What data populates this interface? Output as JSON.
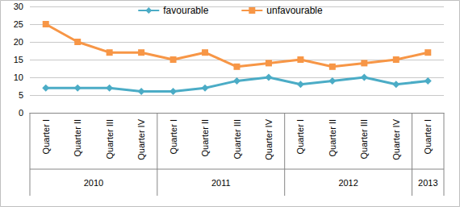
{
  "chart_data": {
    "type": "line",
    "categories": [
      "Quarter I",
      "Quarter II",
      "Quarter III",
      "Quarter IV",
      "Quarter I",
      "Quarter II",
      "Quarter III",
      "Quarter IV",
      "Quarter I",
      "Quarter II",
      "Quarter III",
      "Quarter IV",
      "Quarter I"
    ],
    "category_groups": [
      "2010",
      "2010",
      "2010",
      "2010",
      "2011",
      "2011",
      "2011",
      "2011",
      "2012",
      "2012",
      "2012",
      "2012",
      "2013"
    ],
    "series": [
      {
        "name": "favourable",
        "color": "#4BACC6",
        "marker": "diamond",
        "values": [
          7,
          7,
          7,
          6,
          6,
          7,
          9,
          10,
          8,
          9,
          10,
          8,
          9
        ]
      },
      {
        "name": "unfavourable",
        "color": "#F79646",
        "marker": "square",
        "values": [
          25,
          20,
          17,
          17,
          15,
          17,
          13,
          14,
          15,
          13,
          14,
          15,
          17
        ]
      }
    ],
    "ylim": [
      0,
      30
    ],
    "yticks": [
      0,
      5,
      10,
      15,
      20,
      25,
      30
    ],
    "grid": true,
    "legend": "top"
  }
}
